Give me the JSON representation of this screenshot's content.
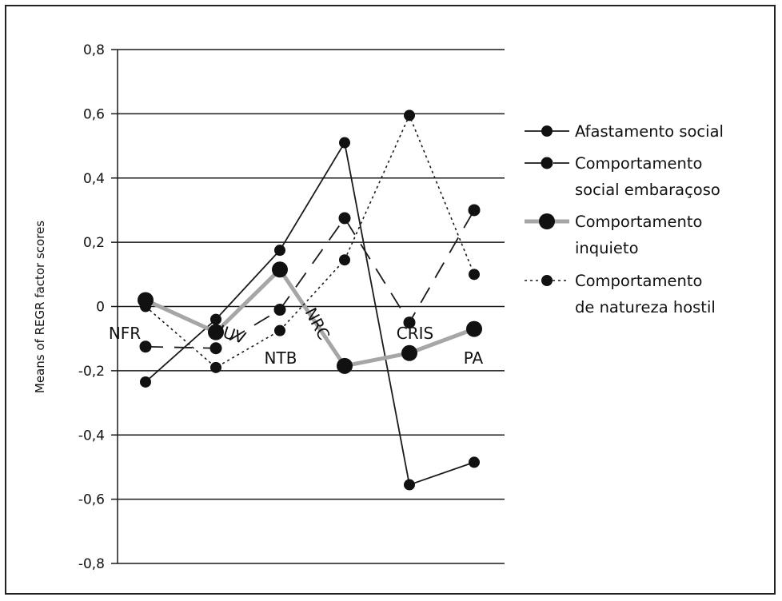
{
  "chart_data": {
    "type": "line",
    "title": "",
    "xlabel": "",
    "ylabel": "Means of REGR factor scores",
    "ylim": [
      -0.8,
      0.8
    ],
    "yticks": [
      0.8,
      0.6,
      0.4,
      0.2,
      0,
      -0.2,
      -0.4,
      -0.6,
      -0.8
    ],
    "ytick_labels": [
      "0,8",
      "0,6",
      "0,4",
      "0,2",
      "0",
      "-0,2",
      "-0,4",
      "-0,6",
      "-0,8"
    ],
    "grid": true,
    "legend_position": "right",
    "categories": [
      "NFR",
      "NUV",
      "NTB",
      "NRC",
      "CRIS",
      "PA"
    ],
    "series": [
      {
        "name": "Afastamento social",
        "values": [
          -0.235,
          -0.04,
          0.175,
          0.51,
          -0.555,
          -0.485
        ],
        "color": "#1a1a1a",
        "line_style": "solid"
      },
      {
        "name": "Comportamento social embaraçoso",
        "values": [
          -0.125,
          -0.13,
          -0.01,
          0.275,
          -0.05,
          0.3
        ],
        "color": "#1a1a1a",
        "line_style": "dashed"
      },
      {
        "name": "Comportamento inquieto",
        "values": [
          0.02,
          -0.08,
          0.115,
          -0.185,
          -0.145,
          -0.07
        ],
        "color": "#a6a6a6",
        "line_style": "thick-gray"
      },
      {
        "name": "Comportamento de natureza hostil",
        "values": [
          0.0,
          -0.19,
          -0.075,
          0.145,
          0.595,
          0.1
        ],
        "color": "#1a1a1a",
        "line_style": "dotted"
      }
    ]
  }
}
